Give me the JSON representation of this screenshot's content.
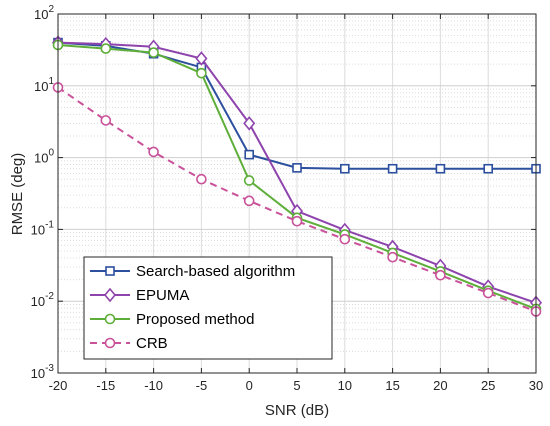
{
  "chart_data": {
    "type": "line",
    "xlabel": "SNR (dB)",
    "ylabel": "RMSE (deg)",
    "xlim": [
      -20,
      30
    ],
    "ylim": [
      0.001,
      100
    ],
    "yscale": "log",
    "grid": true,
    "legend_position": "bottom-left",
    "x": [
      -20,
      -15,
      -10,
      -5,
      0,
      5,
      10,
      15,
      20,
      25,
      30
    ],
    "x_tick_labels": [
      "-20",
      "-15",
      "-10",
      "-5",
      "0",
      "5",
      "10",
      "15",
      "20",
      "25",
      "30"
    ],
    "y_ticks": [
      0.001,
      0.01,
      0.1,
      1,
      10,
      100
    ],
    "y_tick_labels": [
      {
        "base": "10",
        "exp": "-3"
      },
      {
        "base": "10",
        "exp": "-2"
      },
      {
        "base": "10",
        "exp": "-1"
      },
      {
        "base": "10",
        "exp": "0"
      },
      {
        "base": "10",
        "exp": "1"
      },
      {
        "base": "10",
        "exp": "2"
      }
    ],
    "series": [
      {
        "name": "Search-based algorithm",
        "color": "#2c4f9e",
        "marker": "square",
        "dash": "solid",
        "values": [
          40,
          36,
          28,
          18,
          1.1,
          0.72,
          0.7,
          0.7,
          0.7,
          0.7,
          0.7
        ]
      },
      {
        "name": "EPUMA",
        "color": "#8e44ad",
        "marker": "diamond",
        "dash": "solid",
        "values": [
          40,
          38,
          35,
          24,
          3.0,
          0.18,
          0.098,
          0.057,
          0.031,
          0.016,
          0.0095
        ]
      },
      {
        "name": "Proposed method",
        "color": "#5eae3a",
        "marker": "circle",
        "dash": "solid",
        "values": [
          37,
          33,
          29,
          15,
          0.48,
          0.145,
          0.085,
          0.047,
          0.026,
          0.014,
          0.0078
        ]
      },
      {
        "name": "CRB",
        "color": "#c9529a",
        "marker": "circle",
        "dash": "dashed",
        "values": [
          9.5,
          3.3,
          1.2,
          0.5,
          0.25,
          0.13,
          0.073,
          0.041,
          0.023,
          0.013,
          0.0072
        ]
      }
    ]
  }
}
